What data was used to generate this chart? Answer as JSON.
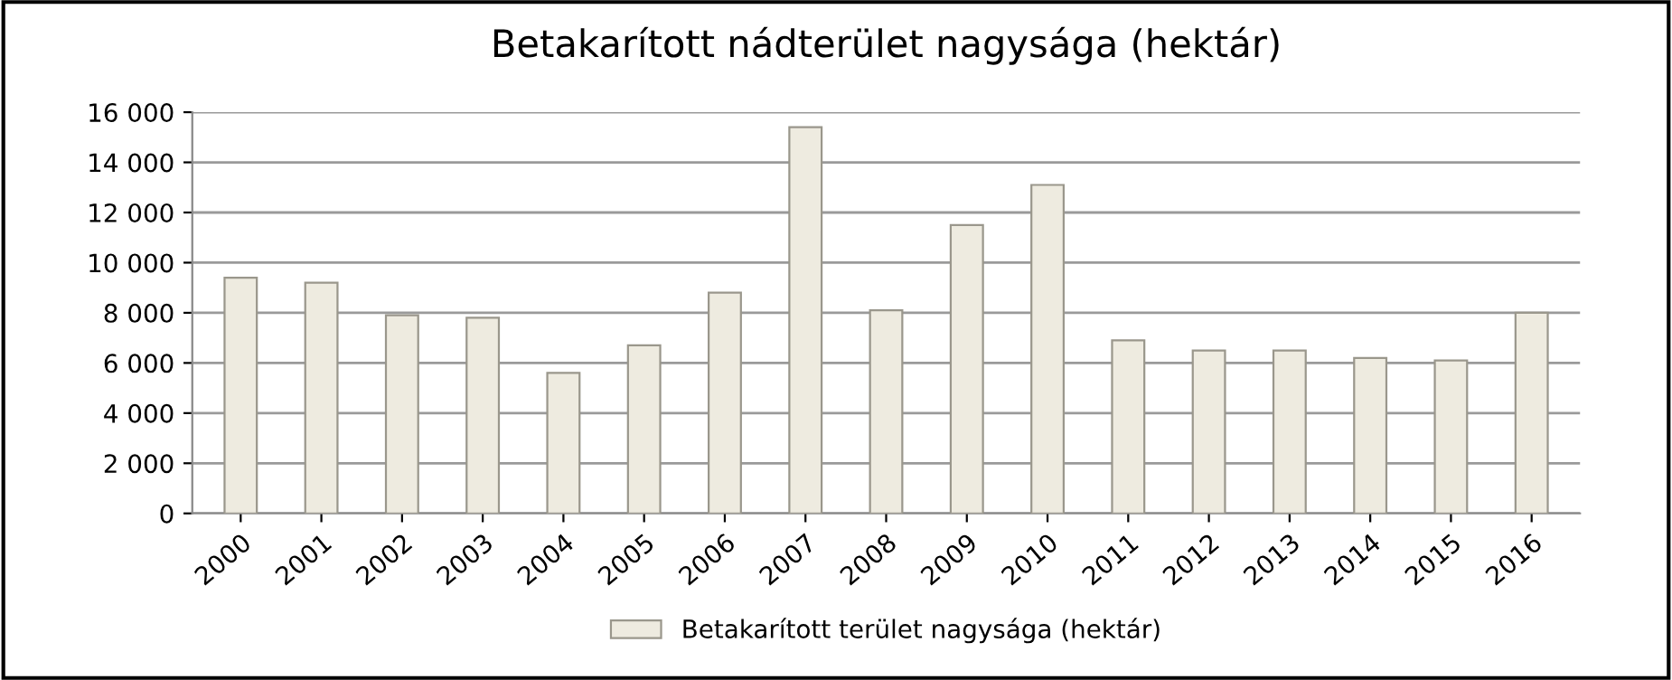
{
  "chart_data": {
    "type": "bar",
    "title": "Betakarított nádterület nagysága (hektár)",
    "categories": [
      "2000",
      "2001",
      "2002",
      "2003",
      "2004",
      "2005",
      "2006",
      "2007",
      "2008",
      "2009",
      "2010",
      "2011",
      "2012",
      "2013",
      "2014",
      "2015",
      "2016"
    ],
    "series": [
      {
        "name": "Betakarított terület nagysága (hektár)",
        "color": "#eeebe0",
        "values": [
          9400,
          9200,
          7900,
          7800,
          5600,
          6700,
          8800,
          15400,
          8100,
          11500,
          13100,
          6900,
          6500,
          6500,
          6200,
          6100,
          8000
        ]
      }
    ],
    "ylim": [
      0,
      16000
    ],
    "yticks": [
      0,
      {
        "value": 2000,
        "label": "2 000"
      },
      {
        "value": 4000,
        "label": "4 000"
      },
      {
        "value": 6000,
        "label": "6 000"
      },
      {
        "value": 8000,
        "label": "8 000"
      },
      {
        "value": 10000,
        "label": "10 000"
      },
      {
        "value": 12000,
        "label": "12 000"
      },
      {
        "value": 14000,
        "label": "14 000"
      },
      {
        "value": 16000,
        "label": "16 000"
      }
    ],
    "grid": "y",
    "legend": "bottom"
  }
}
